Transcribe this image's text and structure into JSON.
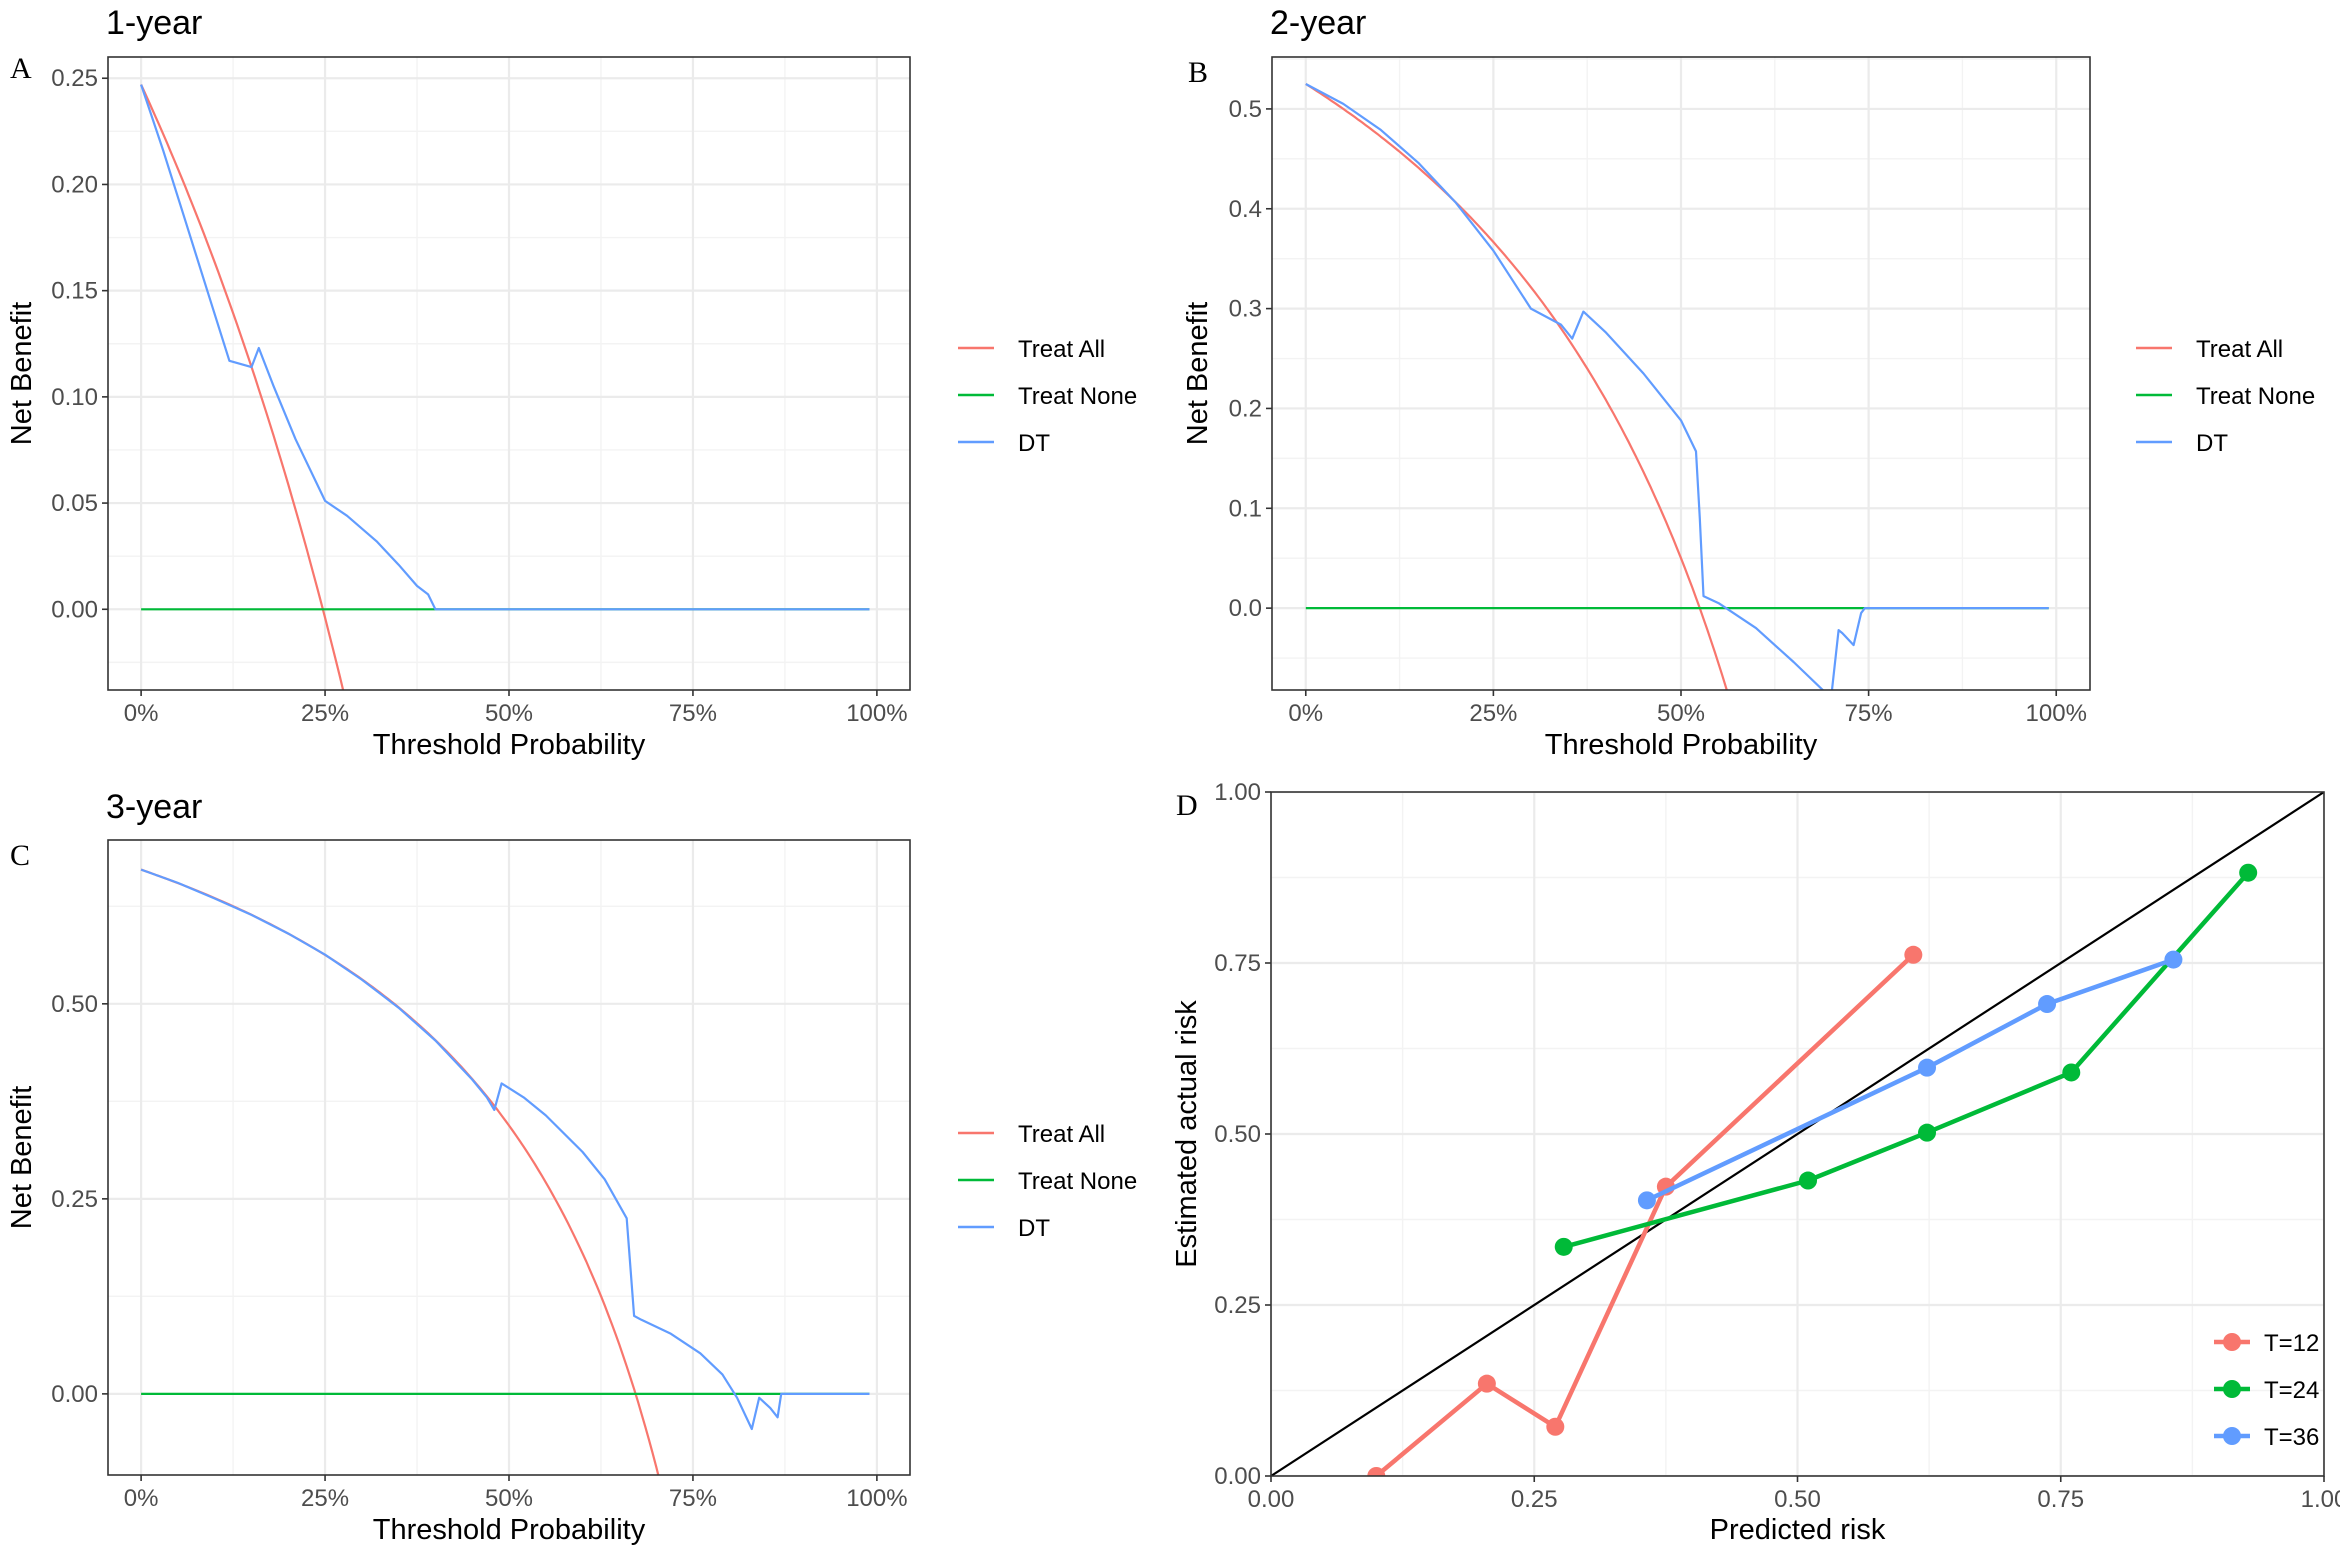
{
  "colors": {
    "treat_all": "#F8766D",
    "treat_none": "#00BA38",
    "dt": "#619CFF",
    "t12": "#F8766D",
    "t24": "#00BA38",
    "t36": "#619CFF",
    "grid_major": "#EBEBEB",
    "grid_minor": "#F3F3F3",
    "border": "#333333",
    "diagonal": "#000000"
  },
  "chart_data": [
    {
      "panel": "A",
      "type": "line",
      "title": "1-year",
      "xlabel": "Threshold Probability",
      "ylabel": "Net Benefit",
      "xlim": [
        -0.045,
        1.045
      ],
      "ylim": [
        -0.038,
        0.26
      ],
      "xticks": [
        0,
        0.25,
        0.5,
        0.75,
        1.0
      ],
      "xtick_labels": [
        "0%",
        "25%",
        "50%",
        "75%",
        "100%"
      ],
      "yticks": [
        0.0,
        0.05,
        0.1,
        0.15,
        0.2,
        0.25
      ],
      "ytick_labels": [
        "0.00",
        "0.05",
        "0.10",
        "0.15",
        "0.20",
        "0.25"
      ],
      "legend": [
        "Treat All",
        "Treat None",
        "DT"
      ],
      "legend_position": "right",
      "series": [
        {
          "name": "Treat All",
          "curve": {
            "kind": "treat_all",
            "prevalence": 0.247
          },
          "x_range": [
            0,
            0.99
          ]
        },
        {
          "name": "Treat None",
          "x": [
            0,
            0.99
          ],
          "y": [
            0,
            0
          ]
        },
        {
          "name": "DT",
          "x": [
            0,
            0.03,
            0.06,
            0.09,
            0.12,
            0.15,
            0.16,
            0.18,
            0.21,
            0.25,
            0.28,
            0.32,
            0.35,
            0.375,
            0.39,
            0.4,
            0.99
          ],
          "y": [
            0.247,
            0.216,
            0.183,
            0.15,
            0.117,
            0.114,
            0.123,
            0.105,
            0.08,
            0.051,
            0.044,
            0.032,
            0.021,
            0.011,
            0.007,
            0.0,
            0.0
          ]
        }
      ]
    },
    {
      "panel": "B",
      "type": "line",
      "title": "2-year",
      "xlabel": "Threshold Probability",
      "ylabel": "Net Benefit",
      "xlim": [
        -0.045,
        1.045
      ],
      "ylim": [
        -0.082,
        0.552
      ],
      "xticks": [
        0,
        0.25,
        0.5,
        0.75,
        1.0
      ],
      "xtick_labels": [
        "0%",
        "25%",
        "50%",
        "75%",
        "100%"
      ],
      "yticks": [
        0.0,
        0.1,
        0.2,
        0.3,
        0.4,
        0.5
      ],
      "ytick_labels": [
        "0.0",
        "0.1",
        "0.2",
        "0.3",
        "0.4",
        "0.5"
      ],
      "legend": [
        "Treat All",
        "Treat None",
        "DT"
      ],
      "legend_position": "right",
      "series": [
        {
          "name": "Treat All",
          "curve": {
            "kind": "treat_all",
            "prevalence": 0.525
          },
          "x_range": [
            0,
            0.99
          ]
        },
        {
          "name": "Treat None",
          "x": [
            0,
            0.99
          ],
          "y": [
            0,
            0
          ]
        },
        {
          "name": "DT",
          "x": [
            0,
            0.05,
            0.1,
            0.15,
            0.2,
            0.25,
            0.3,
            0.34,
            0.355,
            0.37,
            0.4,
            0.45,
            0.5,
            0.52,
            0.525,
            0.53,
            0.55,
            0.6,
            0.65,
            0.7,
            0.71,
            0.715,
            0.73,
            0.74,
            0.745,
            0.99
          ],
          "y": [
            0.525,
            0.505,
            0.479,
            0.446,
            0.406,
            0.358,
            0.3,
            0.284,
            0.27,
            0.297,
            0.276,
            0.235,
            0.188,
            0.157,
            0.09,
            0.012,
            0.005,
            -0.02,
            -0.054,
            -0.09,
            -0.022,
            -0.025,
            -0.037,
            -0.005,
            0.0,
            0.0
          ]
        }
      ]
    },
    {
      "panel": "C",
      "type": "line",
      "title": "3-year",
      "xlabel": "Threshold Probability",
      "ylabel": "Net Benefit",
      "xlim": [
        -0.045,
        1.045
      ],
      "ylim": [
        -0.104,
        0.71
      ],
      "xticks": [
        0,
        0.25,
        0.5,
        0.75,
        1.0
      ],
      "xtick_labels": [
        "0%",
        "25%",
        "50%",
        "75%",
        "100%"
      ],
      "yticks": [
        0.0,
        0.25,
        0.5
      ],
      "ytick_labels": [
        "0.00",
        "0.25",
        "0.50"
      ],
      "legend": [
        "Treat All",
        "Treat None",
        "DT"
      ],
      "legend_position": "right",
      "series": [
        {
          "name": "Treat All",
          "curve": {
            "kind": "treat_all",
            "prevalence": 0.672
          },
          "x_range": [
            0,
            0.99
          ]
        },
        {
          "name": "Treat None",
          "x": [
            0,
            0.99
          ],
          "y": [
            0,
            0
          ]
        },
        {
          "name": "DT",
          "x": [
            0,
            0.05,
            0.1,
            0.15,
            0.2,
            0.25,
            0.3,
            0.35,
            0.4,
            0.45,
            0.47,
            0.48,
            0.49,
            0.52,
            0.55,
            0.6,
            0.63,
            0.66,
            0.67,
            0.68,
            0.72,
            0.76,
            0.79,
            0.81,
            0.83,
            0.84,
            0.855,
            0.865,
            0.87,
            0.99
          ],
          "y": [
            0.672,
            0.655,
            0.635,
            0.614,
            0.59,
            0.563,
            0.531,
            0.495,
            0.453,
            0.403,
            0.38,
            0.364,
            0.398,
            0.38,
            0.357,
            0.31,
            0.275,
            0.225,
            0.1,
            0.095,
            0.077,
            0.052,
            0.025,
            -0.005,
            -0.045,
            -0.005,
            -0.018,
            -0.03,
            0.0,
            0.0
          ]
        }
      ]
    },
    {
      "panel": "D",
      "type": "line",
      "title": "",
      "xlabel": "Predicted risk",
      "ylabel": "Estimated actual risk",
      "xlim": [
        0,
        1
      ],
      "ylim": [
        0,
        1
      ],
      "xticks": [
        0,
        0.25,
        0.5,
        0.75,
        1.0
      ],
      "xtick_labels": [
        "0.00",
        "0.25",
        "0.50",
        "0.75",
        "1.00"
      ],
      "yticks": [
        0,
        0.25,
        0.5,
        0.75,
        1.0
      ],
      "ytick_labels": [
        "0.00",
        "0.25",
        "0.50",
        "0.75",
        "1.00"
      ],
      "legend": [
        "T=12",
        "T=24",
        "T=36"
      ],
      "legend_position": "bottom-right",
      "reference_line": {
        "x": [
          0,
          1
        ],
        "y": [
          0,
          1
        ]
      },
      "series": [
        {
          "name": "T=12",
          "x": [
            0.1,
            0.205,
            0.27,
            0.375,
            0.61
          ],
          "y": [
            0.0,
            0.135,
            0.072,
            0.423,
            0.762
          ]
        },
        {
          "name": "T=24",
          "x": [
            0.278,
            0.51,
            0.623,
            0.76,
            0.928
          ],
          "y": [
            0.335,
            0.432,
            0.502,
            0.59,
            0.882
          ]
        },
        {
          "name": "T=36",
          "x": [
            0.357,
            0.623,
            0.737,
            0.857
          ],
          "y": [
            0.403,
            0.597,
            0.69,
            0.755
          ]
        }
      ]
    }
  ]
}
